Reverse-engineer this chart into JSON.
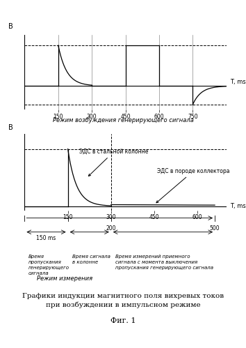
{
  "fig_width": 3.54,
  "fig_height": 4.99,
  "dpi": 100,
  "top_chart": {
    "title": "В",
    "xlabel": "T, ms",
    "x_ticks": [
      150,
      300,
      450,
      600,
      750
    ],
    "xlim": [
      0,
      900
    ],
    "ylim": [
      -0.38,
      0.82
    ],
    "dashed_upper": 0.65,
    "dashed_lower": -0.3
  },
  "bottom_chart": {
    "title": "В",
    "xlabel": "T, ms",
    "x_ticks_top": [
      150,
      300,
      450,
      600
    ],
    "x_ticks_bottom_vals": [
      200,
      500
    ],
    "x_ticks_bottom_labels": [
      "200",
      "500"
    ],
    "xlim": [
      0,
      700
    ],
    "ylim": [
      -0.05,
      0.82
    ],
    "dashed_level": 0.65,
    "label_emc_steel": "ЭДС в стальной колонне",
    "label_emc_rock": "ЭДС в породе коллектора"
  },
  "caption_top": "Режим возбуждения генерирующего сигнала",
  "caption_bottom": "Режим измерения",
  "label1_line1": "Время",
  "label1_line2": "пропускания",
  "label1_line3": "генерирующего",
  "label1_line4": "сигнала",
  "label2_line1": "Время сигнала",
  "label2_line2": "в колонне",
  "label3_line1": "Время измерений приемного",
  "label3_line2": "сигнала с момента выключения",
  "label3_line3": "пропускания генерирующего сигнала",
  "time_label": "150 ms",
  "fig_caption1": "Графики индукции магнитного поля вихревых токов",
  "fig_caption2": "при возбуждении в импульсном режиме",
  "fig_label": "Фиг. 1",
  "bg": "#ffffff",
  "lc": "#000000"
}
